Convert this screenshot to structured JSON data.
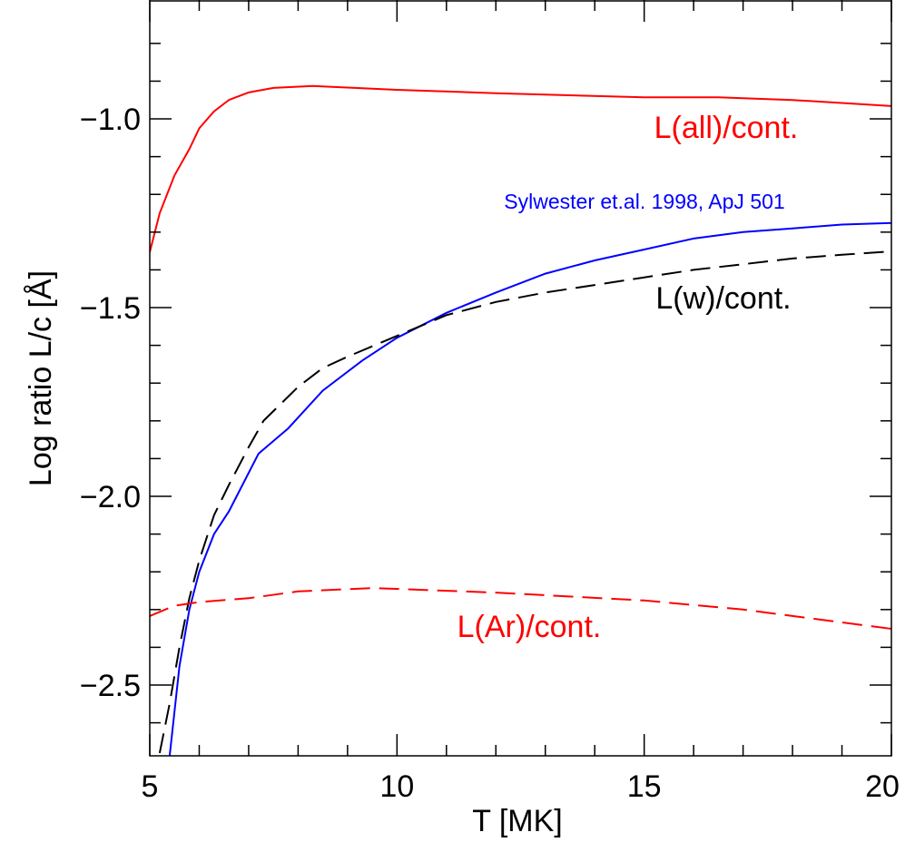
{
  "chart_data": {
    "type": "line",
    "x_label": "T [MK]",
    "y_label": "Log ratio L/c [Å]",
    "xlim": [
      5,
      20
    ],
    "ylim": [
      -2.6875,
      -0.685
    ],
    "xticks": [
      5,
      10,
      15,
      20
    ],
    "yticks": [
      {
        "value": -1.0,
        "label": "−1.0"
      },
      {
        "value": -1.5,
        "label": "−1.5"
      },
      {
        "value": -2.0,
        "label": "−2.0"
      },
      {
        "value": -2.5,
        "label": "−2.5"
      }
    ],
    "xminorticks": [
      6,
      7,
      8,
      9,
      11,
      12,
      13,
      14,
      16,
      17,
      18,
      19
    ],
    "yminorticks": [
      -0.8,
      -0.9,
      -1.1,
      -1.2,
      -1.3,
      -1.4,
      -1.6,
      -1.7,
      -1.8,
      -1.9,
      -2.1,
      -2.2,
      -2.3,
      -2.4,
      -2.6
    ],
    "series": [
      {
        "name": "L(all)/cont.",
        "color": "#ff0000",
        "dashed": false,
        "x": [
          5,
          5.2,
          5.5,
          5.8,
          6,
          6.3,
          6.6,
          7,
          7.5,
          8.3,
          9,
          10,
          12,
          15,
          16.5,
          18,
          20
        ],
        "values": [
          -1.353,
          -1.25,
          -1.15,
          -1.08,
          -1.025,
          -0.98,
          -0.95,
          -0.93,
          -0.918,
          -0.913,
          -0.917,
          -0.923,
          -0.932,
          -0.943,
          -0.943,
          -0.95,
          -0.966
        ]
      },
      {
        "name": "Sylwester et.al. 1998, ApJ 501",
        "color": "#0000ff",
        "dashed": false,
        "x": [
          5.4,
          5.6,
          5.8,
          6,
          6.3,
          6.6,
          7.2,
          7.8,
          8.5,
          9.3,
          10,
          11,
          12,
          13,
          14,
          15,
          16,
          17,
          18,
          19,
          20
        ],
        "values": [
          -2.69,
          -2.45,
          -2.3,
          -2.2,
          -2.1,
          -2.04,
          -1.887,
          -1.82,
          -1.72,
          -1.64,
          -1.58,
          -1.514,
          -1.46,
          -1.41,
          -1.375,
          -1.346,
          -1.317,
          -1.3,
          -1.29,
          -1.28,
          -1.276
        ]
      },
      {
        "name": "L(w)/cont.",
        "color": "#000000",
        "dashed": true,
        "x": [
          5.2,
          5.4,
          5.6,
          5.8,
          6,
          6.3,
          6.6,
          7,
          7.3,
          8,
          8.5,
          9,
          10,
          11,
          12,
          13,
          14,
          15,
          16,
          17,
          18,
          19,
          20
        ],
        "values": [
          -2.68,
          -2.55,
          -2.4,
          -2.27,
          -2.17,
          -2.05,
          -1.97,
          -1.87,
          -1.8,
          -1.71,
          -1.66,
          -1.63,
          -1.575,
          -1.52,
          -1.485,
          -1.46,
          -1.44,
          -1.42,
          -1.4,
          -1.385,
          -1.37,
          -1.36,
          -1.351
        ]
      },
      {
        "name": "L(Ar)/cont.",
        "color": "#ff0000",
        "dashed": true,
        "x": [
          5,
          5.5,
          6,
          7,
          8,
          9.5,
          12,
          15,
          17,
          20
        ],
        "values": [
          -2.317,
          -2.29,
          -2.28,
          -2.27,
          -2.252,
          -2.243,
          -2.255,
          -2.276,
          -2.3,
          -2.351
        ]
      }
    ]
  }
}
